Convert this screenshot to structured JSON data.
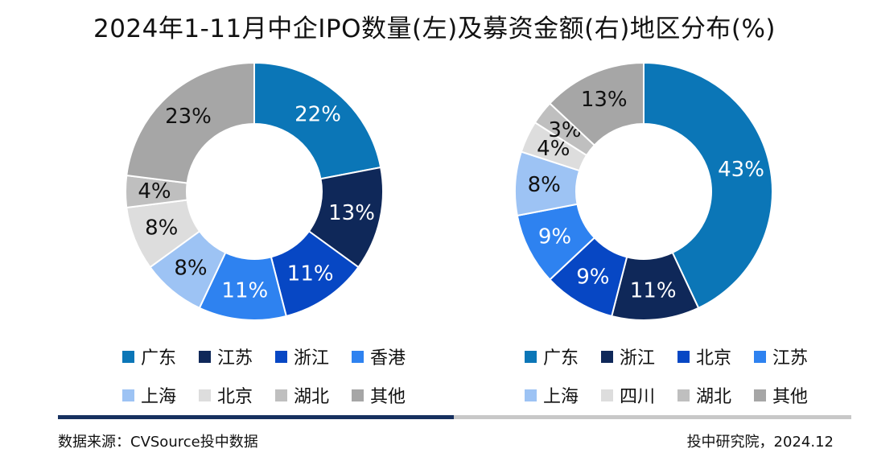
{
  "title": "2024年1-11月中企IPO数量(左)及募资金额(右)地区分布(%)",
  "chart_data": [
    {
      "type": "pie",
      "donut": true,
      "categories": [
        "广东",
        "江苏",
        "浙江",
        "香港",
        "上海",
        "北京",
        "湖北",
        "其他"
      ],
      "values": [
        22,
        13,
        11,
        11,
        8,
        8,
        4,
        23
      ],
      "value_labels": [
        "22%",
        "13%",
        "11%",
        "11%",
        "8%",
        "8%",
        "4%",
        "23%"
      ],
      "colors": [
        "#0b76b7",
        "#0f2859",
        "#0747c4",
        "#2e82f0",
        "#9dc3f4",
        "#dddddd",
        "#bfbfbf",
        "#a6a6a6"
      ],
      "label_colors": [
        "#ffffff",
        "#ffffff",
        "#ffffff",
        "#ffffff",
        "#111111",
        "#111111",
        "#111111",
        "#111111"
      ],
      "legend_position": "bottom"
    },
    {
      "type": "pie",
      "donut": true,
      "categories": [
        "广东",
        "浙江",
        "北京",
        "江苏",
        "上海",
        "四川",
        "湖北",
        "其他"
      ],
      "values": [
        43,
        11,
        9,
        9,
        8,
        4,
        3,
        13
      ],
      "value_labels": [
        "43%",
        "11%",
        "9%",
        "9%",
        "8%",
        "4%",
        "3%",
        "13%"
      ],
      "colors": [
        "#0b76b7",
        "#0f2859",
        "#0747c4",
        "#2e82f0",
        "#9dc3f4",
        "#dddddd",
        "#bfbfbf",
        "#a6a6a6"
      ],
      "label_colors": [
        "#ffffff",
        "#ffffff",
        "#ffffff",
        "#ffffff",
        "#111111",
        "#111111",
        "#111111",
        "#111111"
      ],
      "legend_position": "bottom"
    }
  ],
  "footer": {
    "source": "数据来源：CVSource投中数据",
    "credit": "投中研究院，2024.12"
  }
}
